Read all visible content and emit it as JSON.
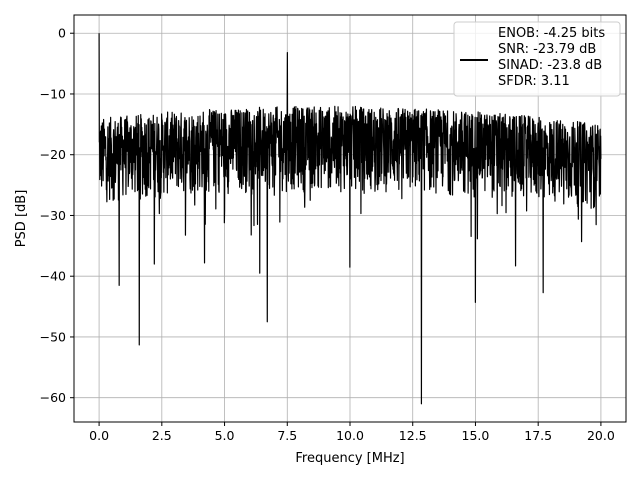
{
  "chart_data": {
    "type": "line",
    "title": "",
    "xlabel": "Frequency [MHz]",
    "ylabel": "PSD [dB]",
    "xlim": [
      -1.0,
      21.0
    ],
    "ylim": [
      -64.0,
      3.0
    ],
    "x_ticks": [
      0.0,
      2.5,
      5.0,
      7.5,
      10.0,
      12.5,
      15.0,
      17.5,
      20.0
    ],
    "x_tick_labels": [
      "0.0",
      "2.5",
      "5.0",
      "7.5",
      "10.0",
      "12.5",
      "15.0",
      "17.5",
      "20.0"
    ],
    "y_ticks": [
      0,
      -10,
      -20,
      -30,
      -40,
      -50,
      -60
    ],
    "y_tick_labels": [
      "0",
      "−10",
      "−20",
      "−30",
      "−40",
      "−50",
      "−60"
    ],
    "grid": true,
    "legend_position": "top-right",
    "series": [
      {
        "name": "ENOB: -4.25 bits\nSNR: -23.79 dB\nSINAD: -23.8 dB\nSFDR: 3.11",
        "color": "#000000",
        "x_range": [
          0.0,
          20.0
        ],
        "points": 2000,
        "noise_floor_db": [
          -31,
          -12
        ],
        "peaks": [
          {
            "x": 0.0,
            "y": 0.0
          },
          {
            "x": 0.8,
            "y": -41.5
          },
          {
            "x": 1.6,
            "y": -51.3
          },
          {
            "x": 2.2,
            "y": -38.0
          },
          {
            "x": 4.2,
            "y": -37.8
          },
          {
            "x": 6.4,
            "y": -39.5
          },
          {
            "x": 6.7,
            "y": -47.5
          },
          {
            "x": 7.5,
            "y": -3.2
          },
          {
            "x": 10.0,
            "y": -38.5
          },
          {
            "x": 12.85,
            "y": -61.0
          },
          {
            "x": 15.0,
            "y": -44.3
          },
          {
            "x": 16.6,
            "y": -38.3
          },
          {
            "x": 17.7,
            "y": -42.7
          }
        ]
      }
    ],
    "legend_lines": [
      "ENOB: -4.25 bits",
      "SNR: -23.79 dB",
      "SINAD: -23.8 dB",
      "SFDR: 3.11"
    ]
  }
}
